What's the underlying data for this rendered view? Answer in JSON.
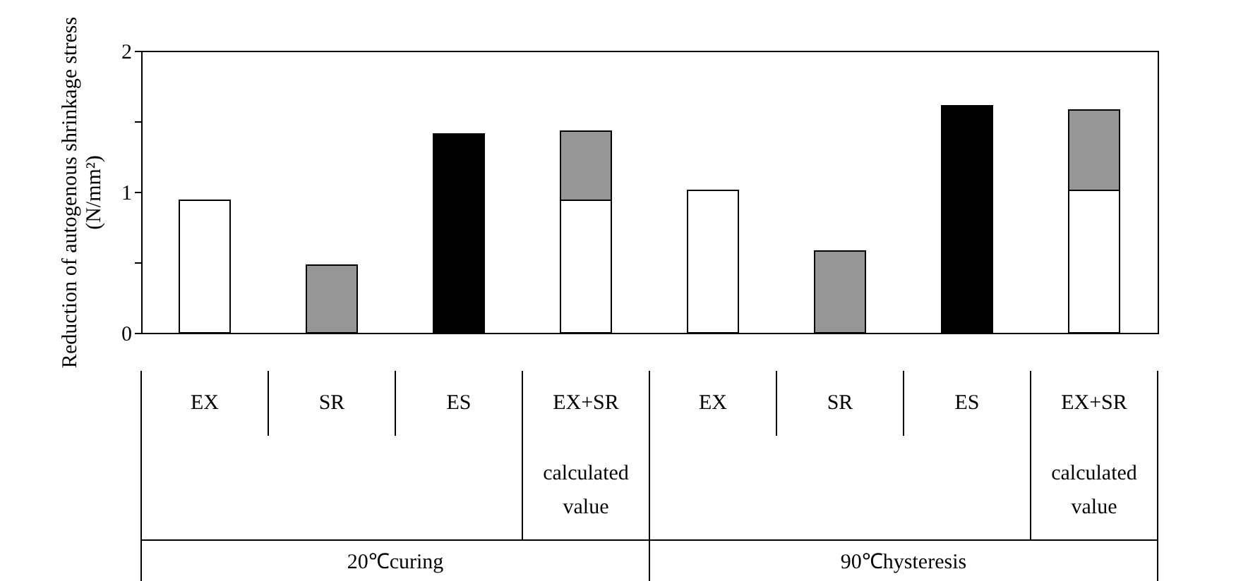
{
  "chart_data": {
    "type": "bar",
    "stacked": true,
    "ylabel": "Reduction of autogenous shrinkage stress\n(N/mm²)",
    "categories": [
      "EX",
      "SR",
      "ES",
      "EX+SR",
      "EX",
      "SR",
      "ES",
      "EX+SR"
    ],
    "series": [
      {
        "color": "#ffffff",
        "values": [
          0.94,
          null,
          null,
          0.94,
          1.01,
          null,
          null,
          1.01
        ]
      },
      {
        "color": "#969696",
        "values": [
          null,
          0.48,
          null,
          0.49,
          null,
          0.58,
          null,
          0.57
        ]
      },
      {
        "color": "#000000",
        "values": [
          null,
          null,
          1.41,
          null,
          null,
          null,
          1.61,
          null
        ]
      }
    ],
    "ylim": [
      0,
      2
    ],
    "yticks": [
      0,
      {
        "value": 0.5,
        "label": null
      },
      1,
      {
        "value": 1.5,
        "label": null
      },
      2
    ],
    "grid": false,
    "annotations": [
      "calculated value",
      "calculated value",
      "20℃curing",
      "90℃hysteresis"
    ]
  }
}
